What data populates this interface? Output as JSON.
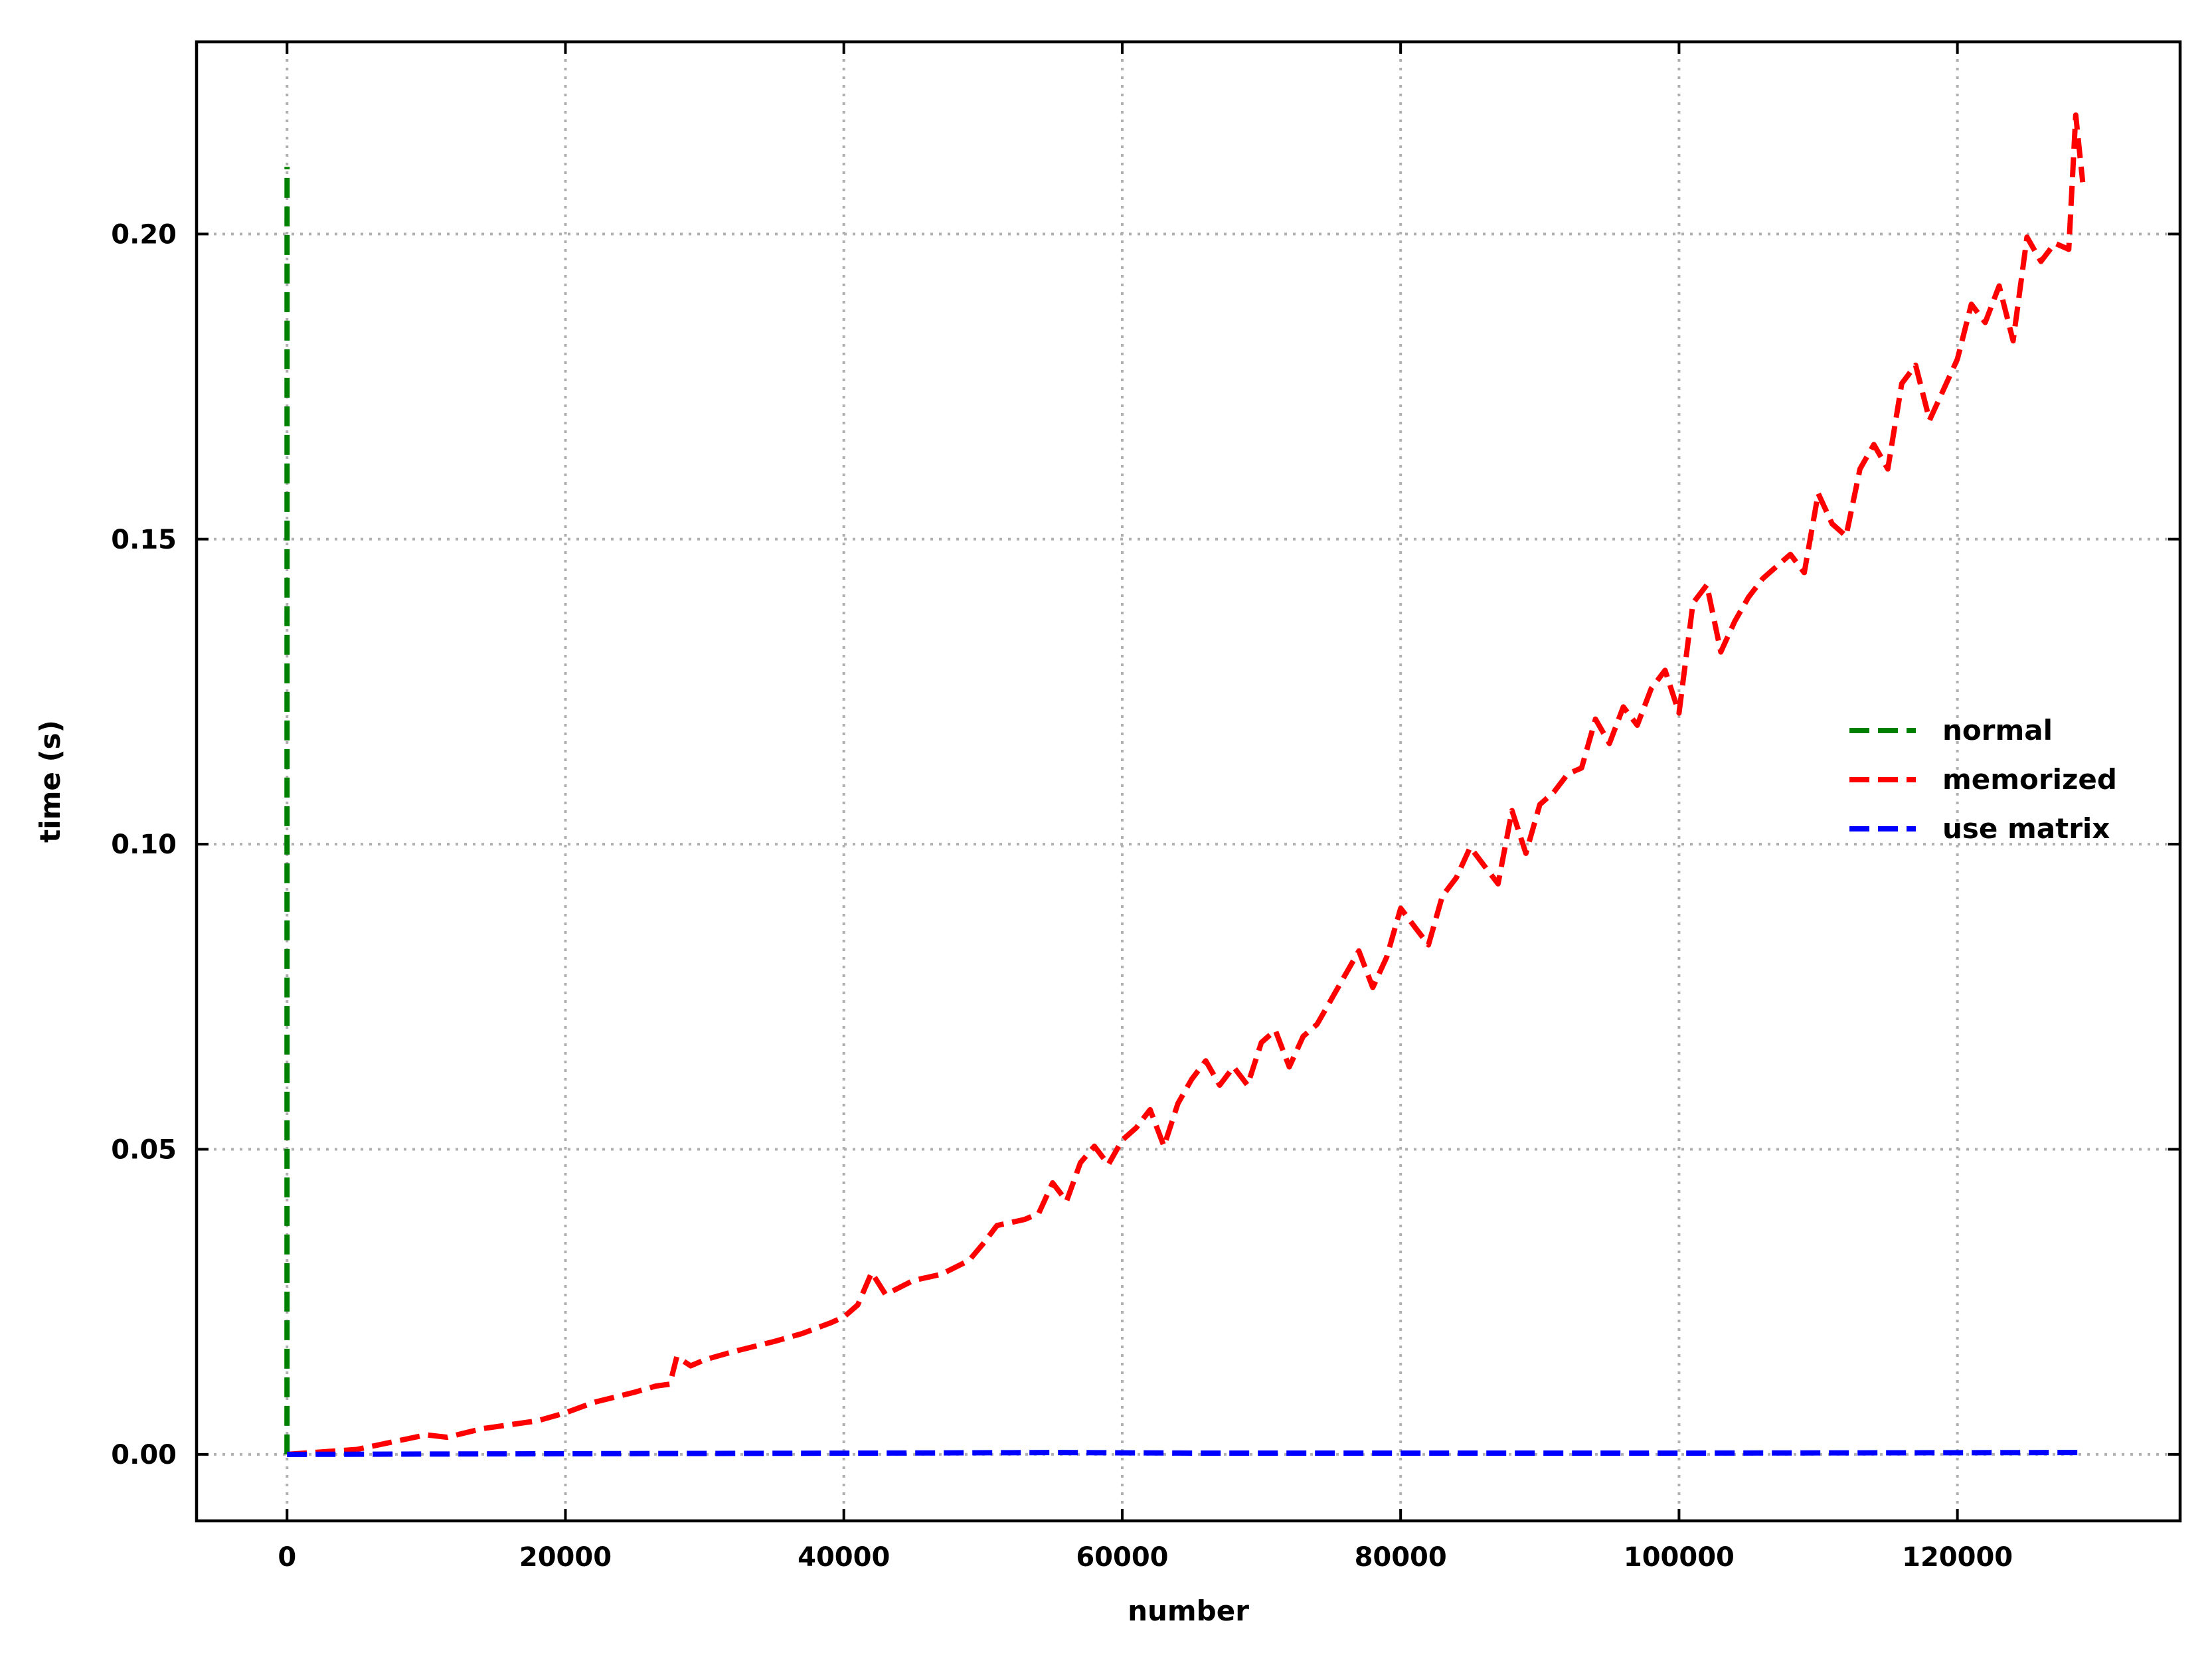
{
  "chart_data": {
    "type": "line",
    "title": "",
    "xlabel": "number",
    "ylabel": "time (s)",
    "xlim": [
      -6500,
      136000
    ],
    "ylim": [
      -0.0109,
      0.2315
    ],
    "xticks": [
      0,
      20000,
      40000,
      60000,
      80000,
      100000,
      120000
    ],
    "xtick_labels": [
      "0",
      "20000",
      "40000",
      "60000",
      "80000",
      "100000",
      "120000"
    ],
    "yticks": [
      0.0,
      0.05,
      0.1,
      0.15,
      0.2
    ],
    "ytick_labels": [
      "0.00",
      "0.05",
      "0.10",
      "0.15",
      "0.20"
    ],
    "grid": true,
    "legend_position": "right",
    "series": [
      {
        "name": "normal",
        "color": "#008000",
        "style": "dashed",
        "x": [
          0,
          1
        ],
        "y": [
          0.0,
          0.211
        ]
      },
      {
        "name": "memorized",
        "color": "#ff0000",
        "style": "dashed",
        "x": [
          0,
          5000,
          10000,
          11500,
          14000,
          18000,
          20000,
          22000,
          25000,
          26500,
          27500,
          28000,
          29000,
          30000,
          32000,
          35000,
          37000,
          39000,
          40000,
          41000,
          42000,
          43000,
          45000,
          47000,
          49000,
          50000,
          51000,
          53000,
          54000,
          55000,
          56000,
          57000,
          58000,
          59000,
          60000,
          61000,
          62000,
          63000,
          64000,
          65000,
          66000,
          67000,
          68000,
          69000,
          70000,
          71000,
          72000,
          73000,
          74000,
          75000,
          76000,
          77000,
          78000,
          79000,
          80000,
          81000,
          82000,
          83000,
          84000,
          85000,
          86000,
          87000,
          88000,
          89000,
          90000,
          91000,
          92000,
          93000,
          94000,
          95000,
          96000,
          97000,
          98000,
          99000,
          100000,
          101000,
          102000,
          103000,
          104000,
          105000,
          106000,
          107000,
          108000,
          109000,
          110000,
          111000,
          112000,
          113000,
          114000,
          115000,
          116000,
          117000,
          118000,
          119000,
          120000,
          121000,
          122000,
          123000,
          124000,
          125000,
          126000,
          127000,
          128000,
          128500,
          129000
        ],
        "y": [
          0.0,
          0.0008,
          0.0032,
          0.0028,
          0.0042,
          0.0055,
          0.0068,
          0.0085,
          0.0102,
          0.0112,
          0.0115,
          0.016,
          0.0145,
          0.0155,
          0.0168,
          0.0185,
          0.0198,
          0.0215,
          0.0225,
          0.0245,
          0.0298,
          0.0262,
          0.0285,
          0.0295,
          0.0318,
          0.0345,
          0.0375,
          0.0385,
          0.0395,
          0.0445,
          0.0415,
          0.0478,
          0.0505,
          0.0475,
          0.0515,
          0.0535,
          0.0565,
          0.0505,
          0.0575,
          0.0615,
          0.0645,
          0.0605,
          0.0635,
          0.0605,
          0.0675,
          0.0695,
          0.0635,
          0.0685,
          0.0705,
          0.0745,
          0.0785,
          0.0825,
          0.0765,
          0.0815,
          0.0895,
          0.0865,
          0.0835,
          0.0915,
          0.0945,
          0.0995,
          0.0965,
          0.0935,
          0.1055,
          0.0985,
          0.1065,
          0.1085,
          0.1115,
          0.1125,
          0.1205,
          0.1165,
          0.1225,
          0.1195,
          0.1255,
          0.1285,
          0.1215,
          0.1395,
          0.1425,
          0.1315,
          0.1365,
          0.1405,
          0.1435,
          0.1455,
          0.1475,
          0.1445,
          0.1575,
          0.1525,
          0.1505,
          0.1615,
          0.1655,
          0.1615,
          0.1755,
          0.1785,
          0.1695,
          0.1745,
          0.1795,
          0.1885,
          0.1855,
          0.1915,
          0.1825,
          0.1995,
          0.1955,
          0.1985,
          0.1975,
          0.2195,
          0.2085
        ]
      },
      {
        "name": "use matrix",
        "color": "#0000ff",
        "style": "dashed",
        "x": [
          0,
          20000,
          42000,
          55500,
          65000,
          80000,
          100000,
          129000
        ],
        "y": [
          0.0,
          0.0001,
          0.0002,
          0.0003,
          0.0002,
          0.0002,
          0.0002,
          0.0003
        ]
      }
    ]
  }
}
